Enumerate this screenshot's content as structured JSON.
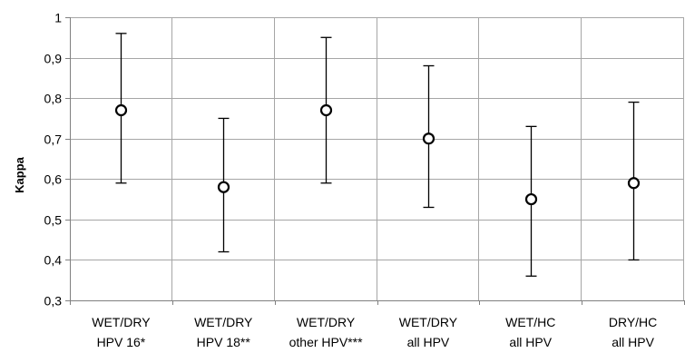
{
  "chart_data": {
    "type": "scatter",
    "ylabel": "Kappa",
    "xlabel": "",
    "title": "",
    "ylim": [
      0.3,
      1.0
    ],
    "y_ticks": [
      "0,3",
      "0,4",
      "0,5",
      "0,6",
      "0,7",
      "0,8",
      "0,9",
      "1"
    ],
    "categories": [
      [
        "WET/DRY",
        "HPV 16*"
      ],
      [
        "WET/DRY",
        "HPV 18**"
      ],
      [
        "WET/DRY",
        "other HPV***"
      ],
      [
        "WET/DRY",
        "all HPV"
      ],
      [
        "WET/HC",
        "all HPV"
      ],
      [
        "DRY/HC",
        "all HPV"
      ]
    ],
    "series": [
      {
        "values": [
          0.77,
          0.58,
          0.77,
          0.7,
          0.55,
          0.59
        ],
        "lower": [
          0.59,
          0.42,
          0.59,
          0.53,
          0.36,
          0.4
        ],
        "upper": [
          0.96,
          0.75,
          0.95,
          0.88,
          0.73,
          0.79
        ]
      }
    ],
    "grid": true,
    "legend": "none",
    "colors": {
      "grid": "#a6a6a6",
      "axis": "#808080",
      "marker_fill": "#ffffff",
      "marker_stroke": "#000000",
      "whisker": "#000000"
    }
  }
}
